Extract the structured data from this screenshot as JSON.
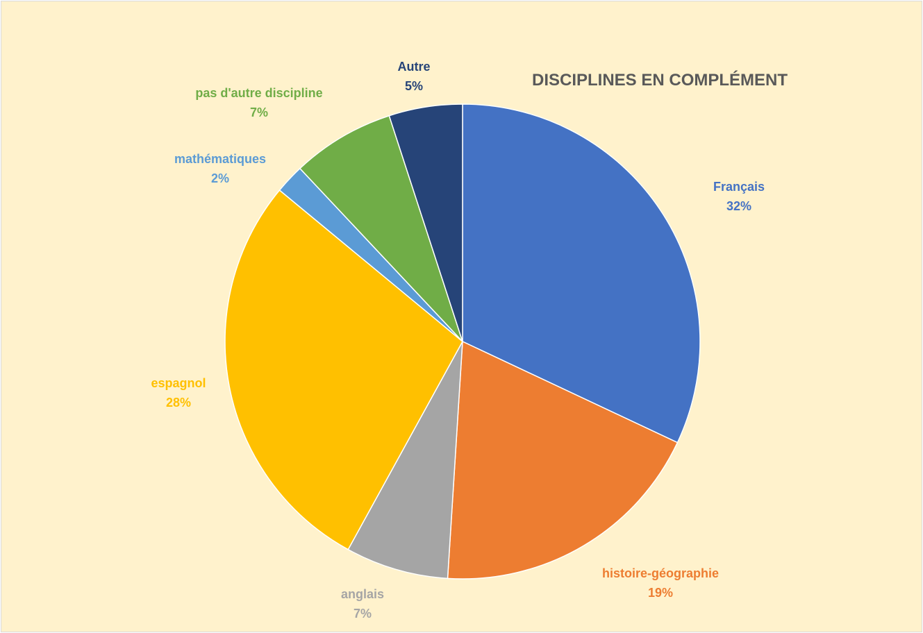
{
  "chart_data": {
    "type": "pie",
    "title": "DISCIPLINES EN COMPLÉMENT",
    "slices": [
      {
        "label": "Français",
        "value": 32,
        "value_label": "32%",
        "color": "#4472c4"
      },
      {
        "label": "histoire-géographie",
        "value": 19,
        "value_label": "19%",
        "color": "#ed7d31"
      },
      {
        "label": "anglais",
        "value": 7,
        "value_label": "7%",
        "color": "#a5a5a5"
      },
      {
        "label": "espagnol",
        "value": 28,
        "value_label": "28%",
        "color": "#ffc000"
      },
      {
        "label": "mathématiques",
        "value": 2,
        "value_label": "2%",
        "color": "#5b9bd5"
      },
      {
        "label": "pas d'autre discipline",
        "value": 7,
        "value_label": "7%",
        "color": "#70ad47"
      },
      {
        "label": "Autre",
        "value": 5,
        "value_label": "5%",
        "color": "#264478"
      }
    ],
    "start_angle": "top",
    "direction": "clockwise",
    "legend": "none",
    "background_color": "#fff2cc",
    "title_color": "#595959"
  }
}
